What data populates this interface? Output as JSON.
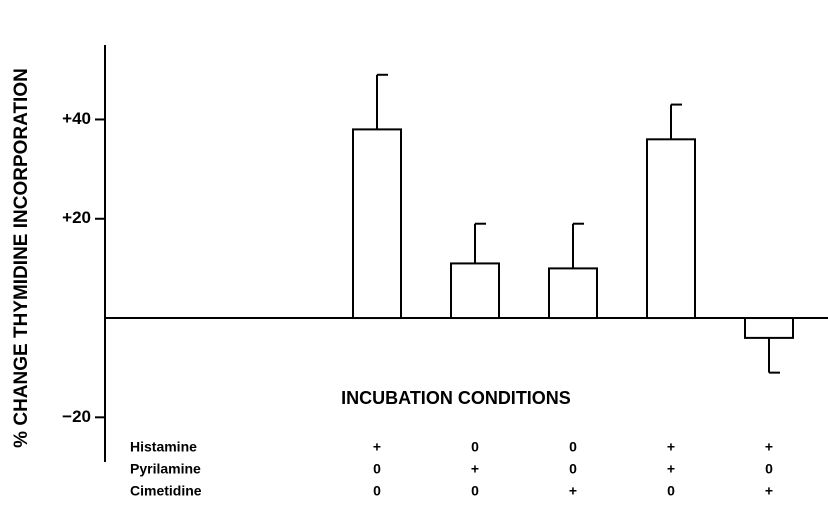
{
  "chart_data": {
    "type": "bar",
    "y_label": "% CHANGE THYMIDINE INCORPORATION",
    "x_label": "INCUBATION CONDITIONS",
    "values": [
      38,
      11,
      10,
      36,
      -4
    ],
    "errors": [
      11,
      8,
      9,
      7,
      7
    ],
    "color": "#ffffff",
    "ylim": [
      -29,
      55
    ],
    "yticks": [
      {
        "value": -20,
        "label": "−20"
      },
      {
        "value": 20,
        "label": "+20"
      },
      {
        "value": 40,
        "label": "+40"
      }
    ],
    "conditions": [
      {
        "name": "Histamine",
        "values": [
          "+",
          "0",
          "0",
          "+",
          "+"
        ]
      },
      {
        "name": "Pyrilamine",
        "values": [
          "0",
          "+",
          "0",
          "+",
          "0"
        ]
      },
      {
        "name": "Cimetidine",
        "values": [
          "0",
          "0",
          "+",
          "0",
          "+"
        ]
      }
    ]
  }
}
